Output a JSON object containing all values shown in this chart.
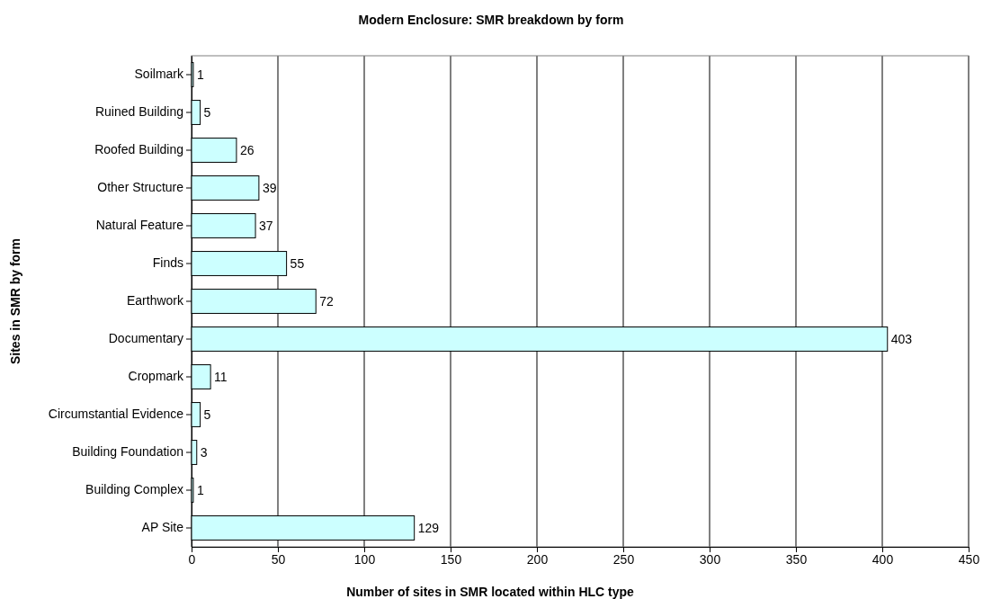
{
  "chart_data": {
    "type": "bar",
    "orientation": "horizontal",
    "title": "Modern Enclosure: SMR breakdown by form",
    "xlabel": "Number of sites in SMR located within HLC type",
    "ylabel": "Sites in SMR by form",
    "categories": [
      "Soilmark",
      "Ruined Building",
      "Roofed Building",
      "Other Structure",
      "Natural Feature",
      "Finds",
      "Earthwork",
      "Documentary",
      "Cropmark",
      "Circumstantial Evidence",
      "Building Foundation",
      "Building Complex",
      "AP Site"
    ],
    "values": [
      1,
      5,
      26,
      39,
      37,
      55,
      72,
      403,
      11,
      5,
      3,
      1,
      129
    ],
    "color": "#ccffff",
    "xlim": [
      0,
      450
    ],
    "xticks": [
      0,
      50,
      100,
      150,
      200,
      250,
      300,
      350,
      400,
      450
    ],
    "grid": "x",
    "data_labels": true
  }
}
